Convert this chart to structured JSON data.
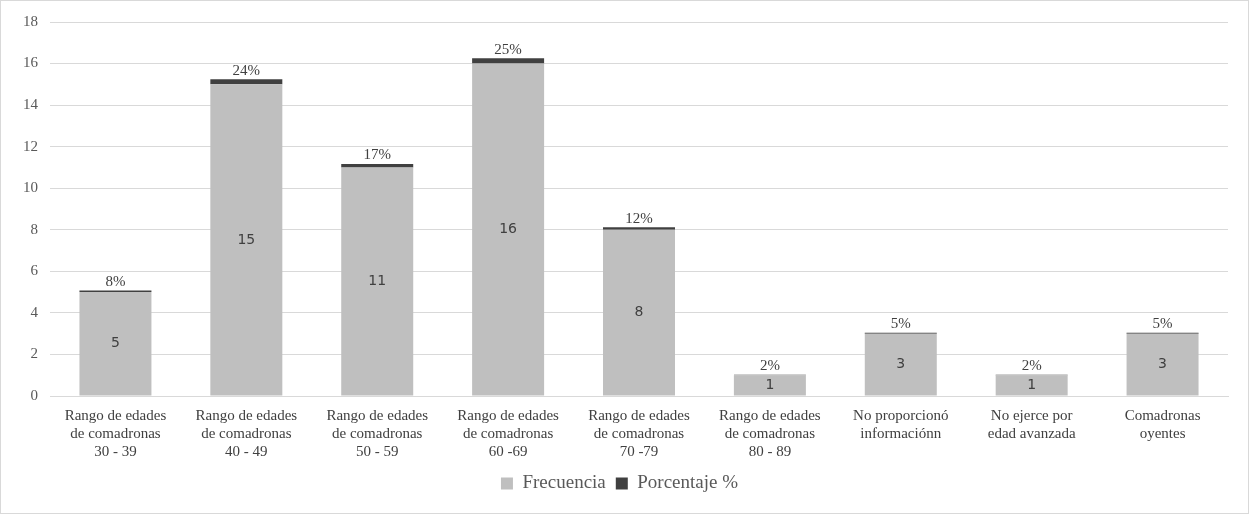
{
  "chart_data": {
    "type": "bar",
    "stacked": true,
    "categories": [
      "Rango de edades de comadronas 30 - 39",
      "Rango de edades de comadronas 40 - 49",
      "Rango de edades de comadronas 50 - 59",
      "Rango de edades de comadronas 60 -69",
      "Rango de edades de comadronas 70 -79",
      "Rango de edades de comadronas 80 - 89",
      "No proporcionó informaciónn",
      "No ejerce por edad avanzada",
      "Comadronas oyentes"
    ],
    "series": [
      {
        "name": "Frecuencia",
        "color": "#bfbfbf",
        "values": [
          5,
          15,
          11,
          16,
          8,
          1,
          3,
          1,
          3
        ],
        "value_labels": [
          "5",
          "15",
          "11",
          "16",
          "8",
          "1",
          "3",
          "1",
          "3"
        ]
      },
      {
        "name": "Porcentaje %",
        "color": "#404040",
        "values": [
          0.08,
          0.24,
          0.17,
          0.25,
          0.12,
          0.02,
          0.05,
          0.02,
          0.05
        ],
        "value_labels": [
          "8%",
          "24%",
          "17%",
          "25%",
          "12%",
          "2%",
          "5%",
          "2%",
          "5%"
        ]
      }
    ],
    "ylim": [
      0,
      18
    ],
    "yticks": [
      0,
      2,
      4,
      6,
      8,
      10,
      12,
      14,
      16,
      18
    ],
    "grid": "y",
    "legend": "bottom"
  }
}
